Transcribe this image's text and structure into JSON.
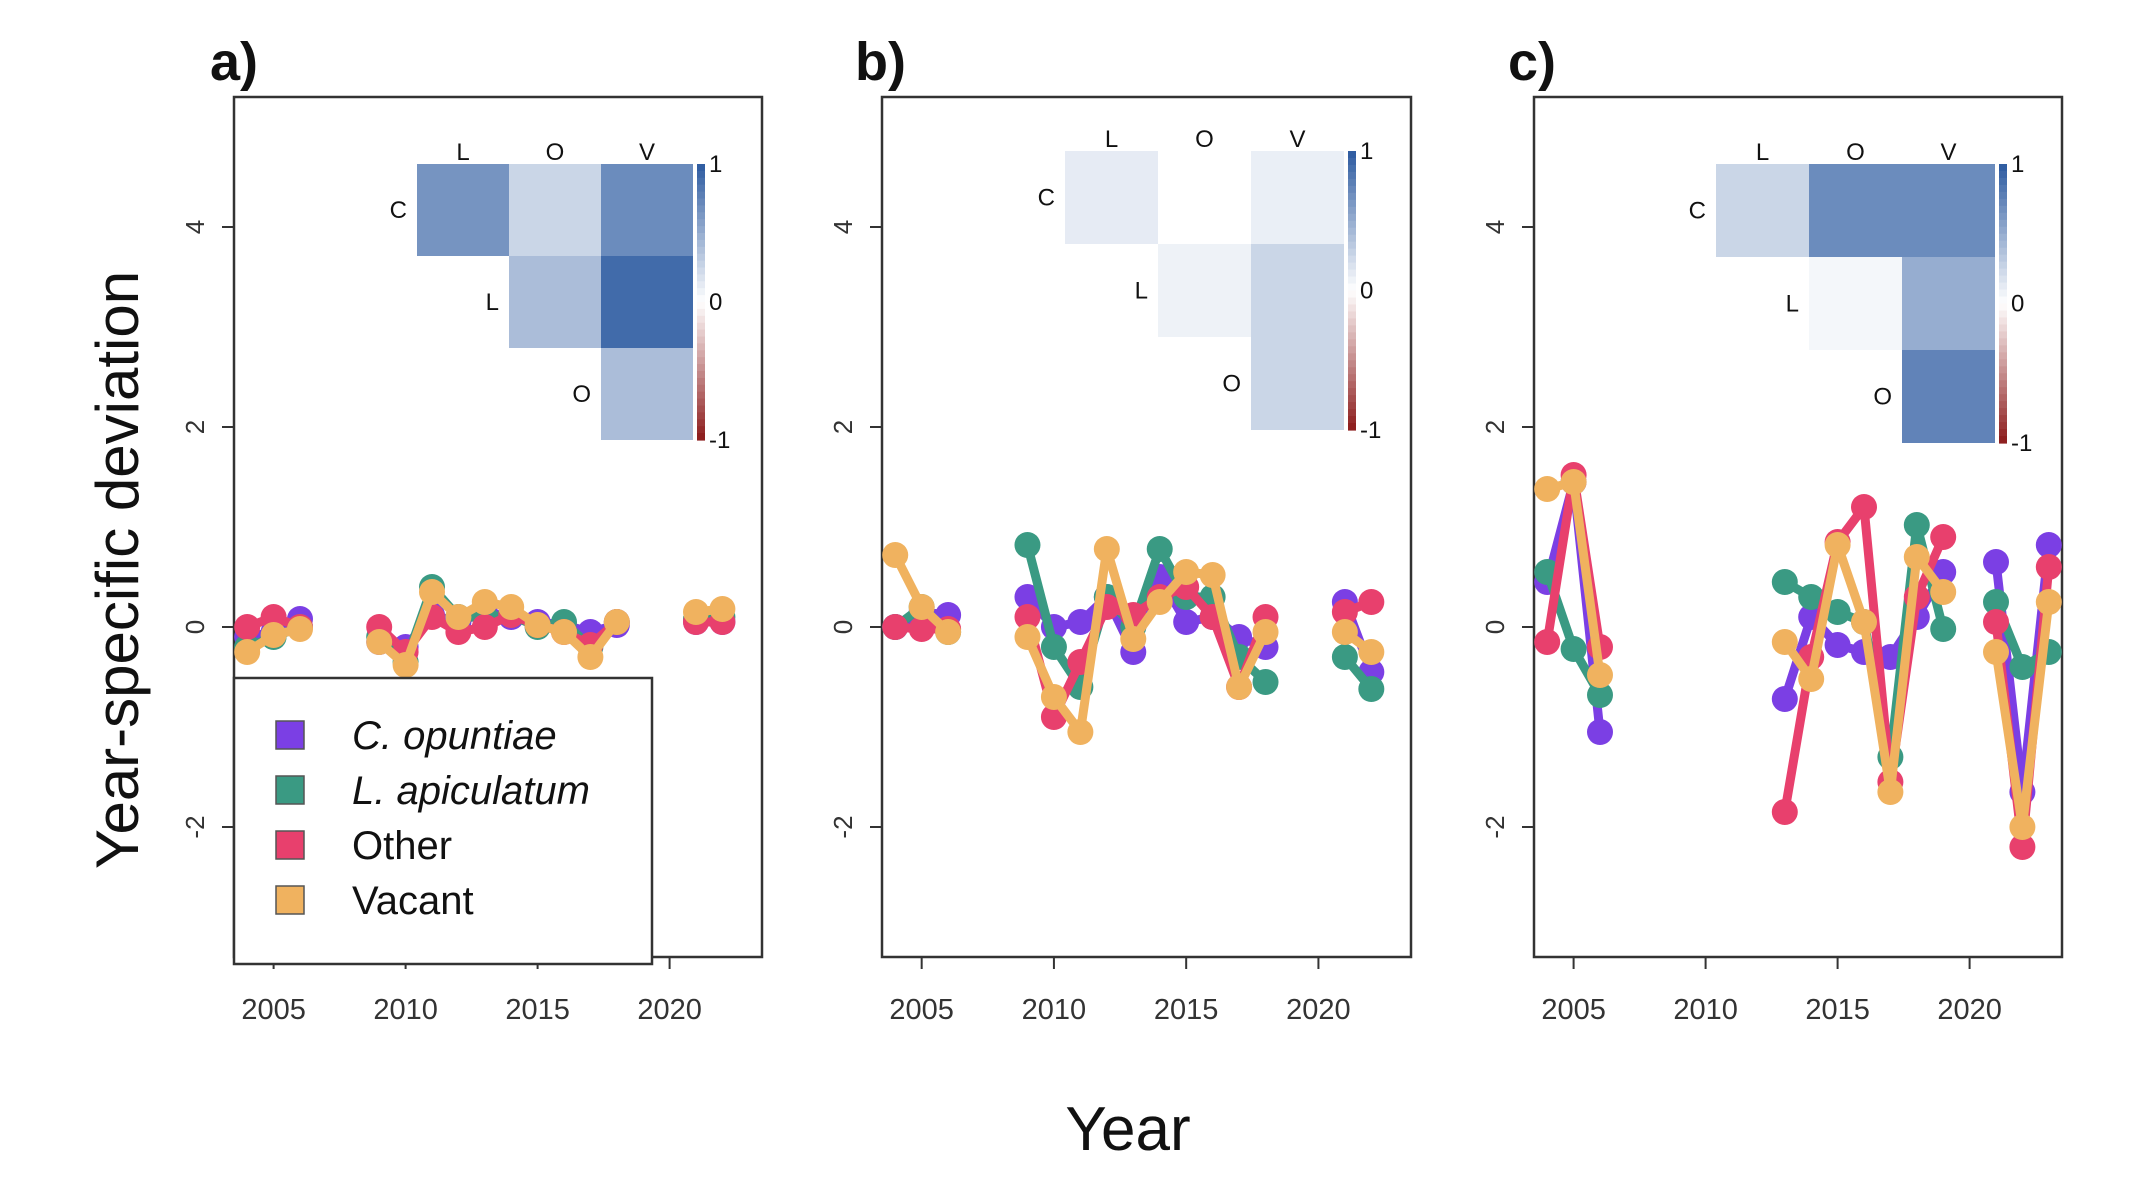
{
  "figure": {
    "ylabel": "Year-specific deviation",
    "xlabel": "Year"
  },
  "legend": {
    "items": [
      {
        "key": "C",
        "label": "C. opuntiae",
        "italic": true
      },
      {
        "key": "L",
        "label": "L. apiculatum",
        "italic": true
      },
      {
        "key": "O",
        "label": "Other",
        "italic": false
      },
      {
        "key": "V",
        "label": "Vacant",
        "italic": false
      }
    ]
  },
  "colors": {
    "C": "#7b3fe4",
    "L": "#3a9a83",
    "O": "#e8406d",
    "V": "#f0b25f",
    "heat_pos": "#2c5aa0",
    "heat_neg": "#8b1a1a",
    "heat_mid": "#ffffff"
  },
  "chart_data": [
    {
      "panel": "a)",
      "type": "line",
      "xlim": [
        2003.5,
        2023.5
      ],
      "ylim": [
        -3.3,
        5.3
      ],
      "xticks": [
        2005,
        2010,
        2015,
        2020
      ],
      "yticks": [
        -2,
        0,
        2,
        4
      ],
      "series": [
        {
          "name": "C. opuntiae",
          "key": "C",
          "x": [
            2004,
            2005,
            2006,
            2009,
            2010,
            2011,
            2012,
            2013,
            2014,
            2015,
            2016,
            2017,
            2018,
            2021,
            2022
          ],
          "y": [
            -0.1,
            -0.05,
            0.08,
            -0.15,
            -0.2,
            0.12,
            0.05,
            0.15,
            0.1,
            0.05,
            0.02,
            -0.05,
            0.02,
            0.05,
            0.05
          ]
        },
        {
          "name": "L. apiculatum",
          "key": "L",
          "x": [
            2004,
            2005,
            2006,
            2009,
            2010,
            2011,
            2012,
            2013,
            2014,
            2015,
            2016,
            2017,
            2018,
            2021,
            2022
          ],
          "y": [
            -0.2,
            -0.1,
            0.0,
            -0.1,
            -0.35,
            0.4,
            0.1,
            0.1,
            0.12,
            0.0,
            0.05,
            -0.2,
            0.05,
            0.08,
            0.1
          ]
        },
        {
          "name": "Other",
          "key": "O",
          "x": [
            2004,
            2005,
            2006,
            2009,
            2010,
            2011,
            2012,
            2013,
            2014,
            2015,
            2016,
            2017,
            2018,
            2021,
            2022
          ],
          "y": [
            0.0,
            0.1,
            0.0,
            0.0,
            -0.25,
            0.1,
            -0.05,
            0.0,
            0.12,
            0.02,
            -0.05,
            -0.18,
            0.05,
            0.05,
            0.05
          ]
        },
        {
          "name": "Vacant",
          "key": "V",
          "x": [
            2004,
            2005,
            2006,
            2009,
            2010,
            2011,
            2012,
            2013,
            2014,
            2015,
            2016,
            2017,
            2018,
            2021,
            2022
          ],
          "y": [
            -0.25,
            -0.08,
            -0.02,
            -0.15,
            -0.38,
            0.35,
            0.1,
            0.25,
            0.2,
            0.02,
            -0.05,
            -0.3,
            0.05,
            0.15,
            0.18
          ]
        }
      ],
      "heatmap": {
        "col_labels": [
          "L",
          "O",
          "V"
        ],
        "row_labels": [
          "C",
          "L",
          "O"
        ],
        "scale_labels": [
          "1",
          "0",
          "-1"
        ],
        "values": [
          [
            0.65,
            0.25,
            0.7
          ],
          [
            null,
            0.4,
            0.9
          ],
          [
            null,
            null,
            0.4
          ]
        ]
      }
    },
    {
      "panel": "b)",
      "type": "line",
      "xlim": [
        2003.5,
        2023.5
      ],
      "ylim": [
        -3.3,
        5.3
      ],
      "xticks": [
        2005,
        2010,
        2015,
        2020
      ],
      "yticks": [
        -2,
        0,
        2,
        4
      ],
      "series": [
        {
          "name": "C. opuntiae",
          "key": "C",
          "x": [
            2004,
            2005,
            2006,
            2009,
            2010,
            2011,
            2012,
            2013,
            2014,
            2015,
            2016,
            2017,
            2018,
            2021,
            2022
          ],
          "y": [
            0.0,
            0.15,
            0.12,
            0.3,
            0.0,
            0.05,
            0.3,
            -0.25,
            0.5,
            0.05,
            0.1,
            -0.1,
            -0.2,
            0.25,
            -0.45
          ]
        },
        {
          "name": "L. apiculatum",
          "key": "L",
          "x": [
            2004,
            2005,
            2006,
            2009,
            2010,
            2011,
            2012,
            2013,
            2014,
            2015,
            2016,
            2017,
            2018,
            2021,
            2022
          ],
          "y": [
            0.0,
            0.2,
            -0.05,
            0.82,
            -0.2,
            -0.6,
            0.3,
            0.0,
            0.78,
            0.3,
            0.3,
            -0.3,
            -0.55,
            -0.3,
            -0.62
          ]
        },
        {
          "name": "Other",
          "key": "O",
          "x": [
            2004,
            2005,
            2006,
            2009,
            2010,
            2011,
            2012,
            2013,
            2014,
            2015,
            2016,
            2017,
            2018,
            2021,
            2022
          ],
          "y": [
            0.0,
            -0.02,
            -0.02,
            0.1,
            -0.9,
            -0.35,
            0.2,
            0.12,
            0.3,
            0.4,
            0.1,
            -0.6,
            0.1,
            0.15,
            0.25
          ]
        },
        {
          "name": "Vacant",
          "key": "V",
          "x": [
            2004,
            2005,
            2006,
            2009,
            2010,
            2011,
            2012,
            2013,
            2014,
            2015,
            2016,
            2017,
            2018,
            2021,
            2022
          ],
          "y": [
            0.72,
            0.2,
            -0.05,
            -0.1,
            -0.7,
            -1.05,
            0.78,
            -0.12,
            0.25,
            0.55,
            0.52,
            -0.6,
            -0.05,
            -0.05,
            -0.25
          ]
        }
      ],
      "heatmap": {
        "col_labels": [
          "L",
          "O",
          "V"
        ],
        "row_labels": [
          "C",
          "L",
          "O"
        ],
        "scale_labels": [
          "1",
          "0",
          "-1"
        ],
        "values": [
          [
            0.12,
            0.0,
            0.1
          ],
          [
            null,
            0.08,
            0.25
          ],
          [
            null,
            null,
            0.25
          ]
        ]
      }
    },
    {
      "panel": "c)",
      "type": "line",
      "xlim": [
        2003.5,
        2023.5
      ],
      "ylim": [
        -3.3,
        5.3
      ],
      "xticks": [
        2005,
        2010,
        2015,
        2020
      ],
      "yticks": [
        -2,
        0,
        2,
        4
      ],
      "series": [
        {
          "name": "C. opuntiae",
          "key": "C",
          "x": [
            2004,
            2005,
            2006,
            2013,
            2014,
            2015,
            2016,
            2017,
            2018,
            2019,
            2021,
            2022,
            2023
          ],
          "y": [
            0.45,
            1.45,
            -1.05,
            -0.72,
            0.1,
            -0.18,
            -0.25,
            -0.3,
            0.1,
            0.55,
            0.65,
            -1.65,
            0.82
          ]
        },
        {
          "name": "L. apiculatum",
          "key": "L",
          "x": [
            2004,
            2005,
            2006,
            2013,
            2014,
            2015,
            2016,
            2017,
            2018,
            2019,
            2021,
            2022,
            2023
          ],
          "y": [
            0.55,
            -0.22,
            -0.68,
            0.45,
            0.3,
            0.15,
            0.05,
            -1.3,
            1.02,
            -0.02,
            0.25,
            -0.4,
            -0.25
          ]
        },
        {
          "name": "Other",
          "key": "O",
          "x": [
            2004,
            2005,
            2006,
            2013,
            2014,
            2015,
            2016,
            2017,
            2018,
            2019,
            2021,
            2022,
            2023
          ],
          "y": [
            -0.15,
            1.52,
            -0.2,
            -1.85,
            -0.3,
            0.85,
            1.2,
            -1.55,
            0.3,
            0.9,
            0.05,
            -2.2,
            0.6
          ]
        },
        {
          "name": "Vacant",
          "key": "V",
          "x": [
            2004,
            2005,
            2006,
            2013,
            2014,
            2015,
            2016,
            2017,
            2018,
            2019,
            2021,
            2022,
            2023
          ],
          "y": [
            1.38,
            1.45,
            -0.48,
            -0.15,
            -0.52,
            0.82,
            0.05,
            -1.65,
            0.7,
            0.35,
            -0.25,
            -2.0,
            0.25
          ]
        }
      ],
      "heatmap": {
        "col_labels": [
          "L",
          "O",
          "V"
        ],
        "row_labels": [
          "C",
          "L",
          "O"
        ],
        "scale_labels": [
          "1",
          "0",
          "-1"
        ],
        "values": [
          [
            0.25,
            0.7,
            0.7
          ],
          [
            null,
            0.05,
            0.5
          ],
          [
            null,
            null,
            0.75
          ]
        ]
      }
    }
  ]
}
